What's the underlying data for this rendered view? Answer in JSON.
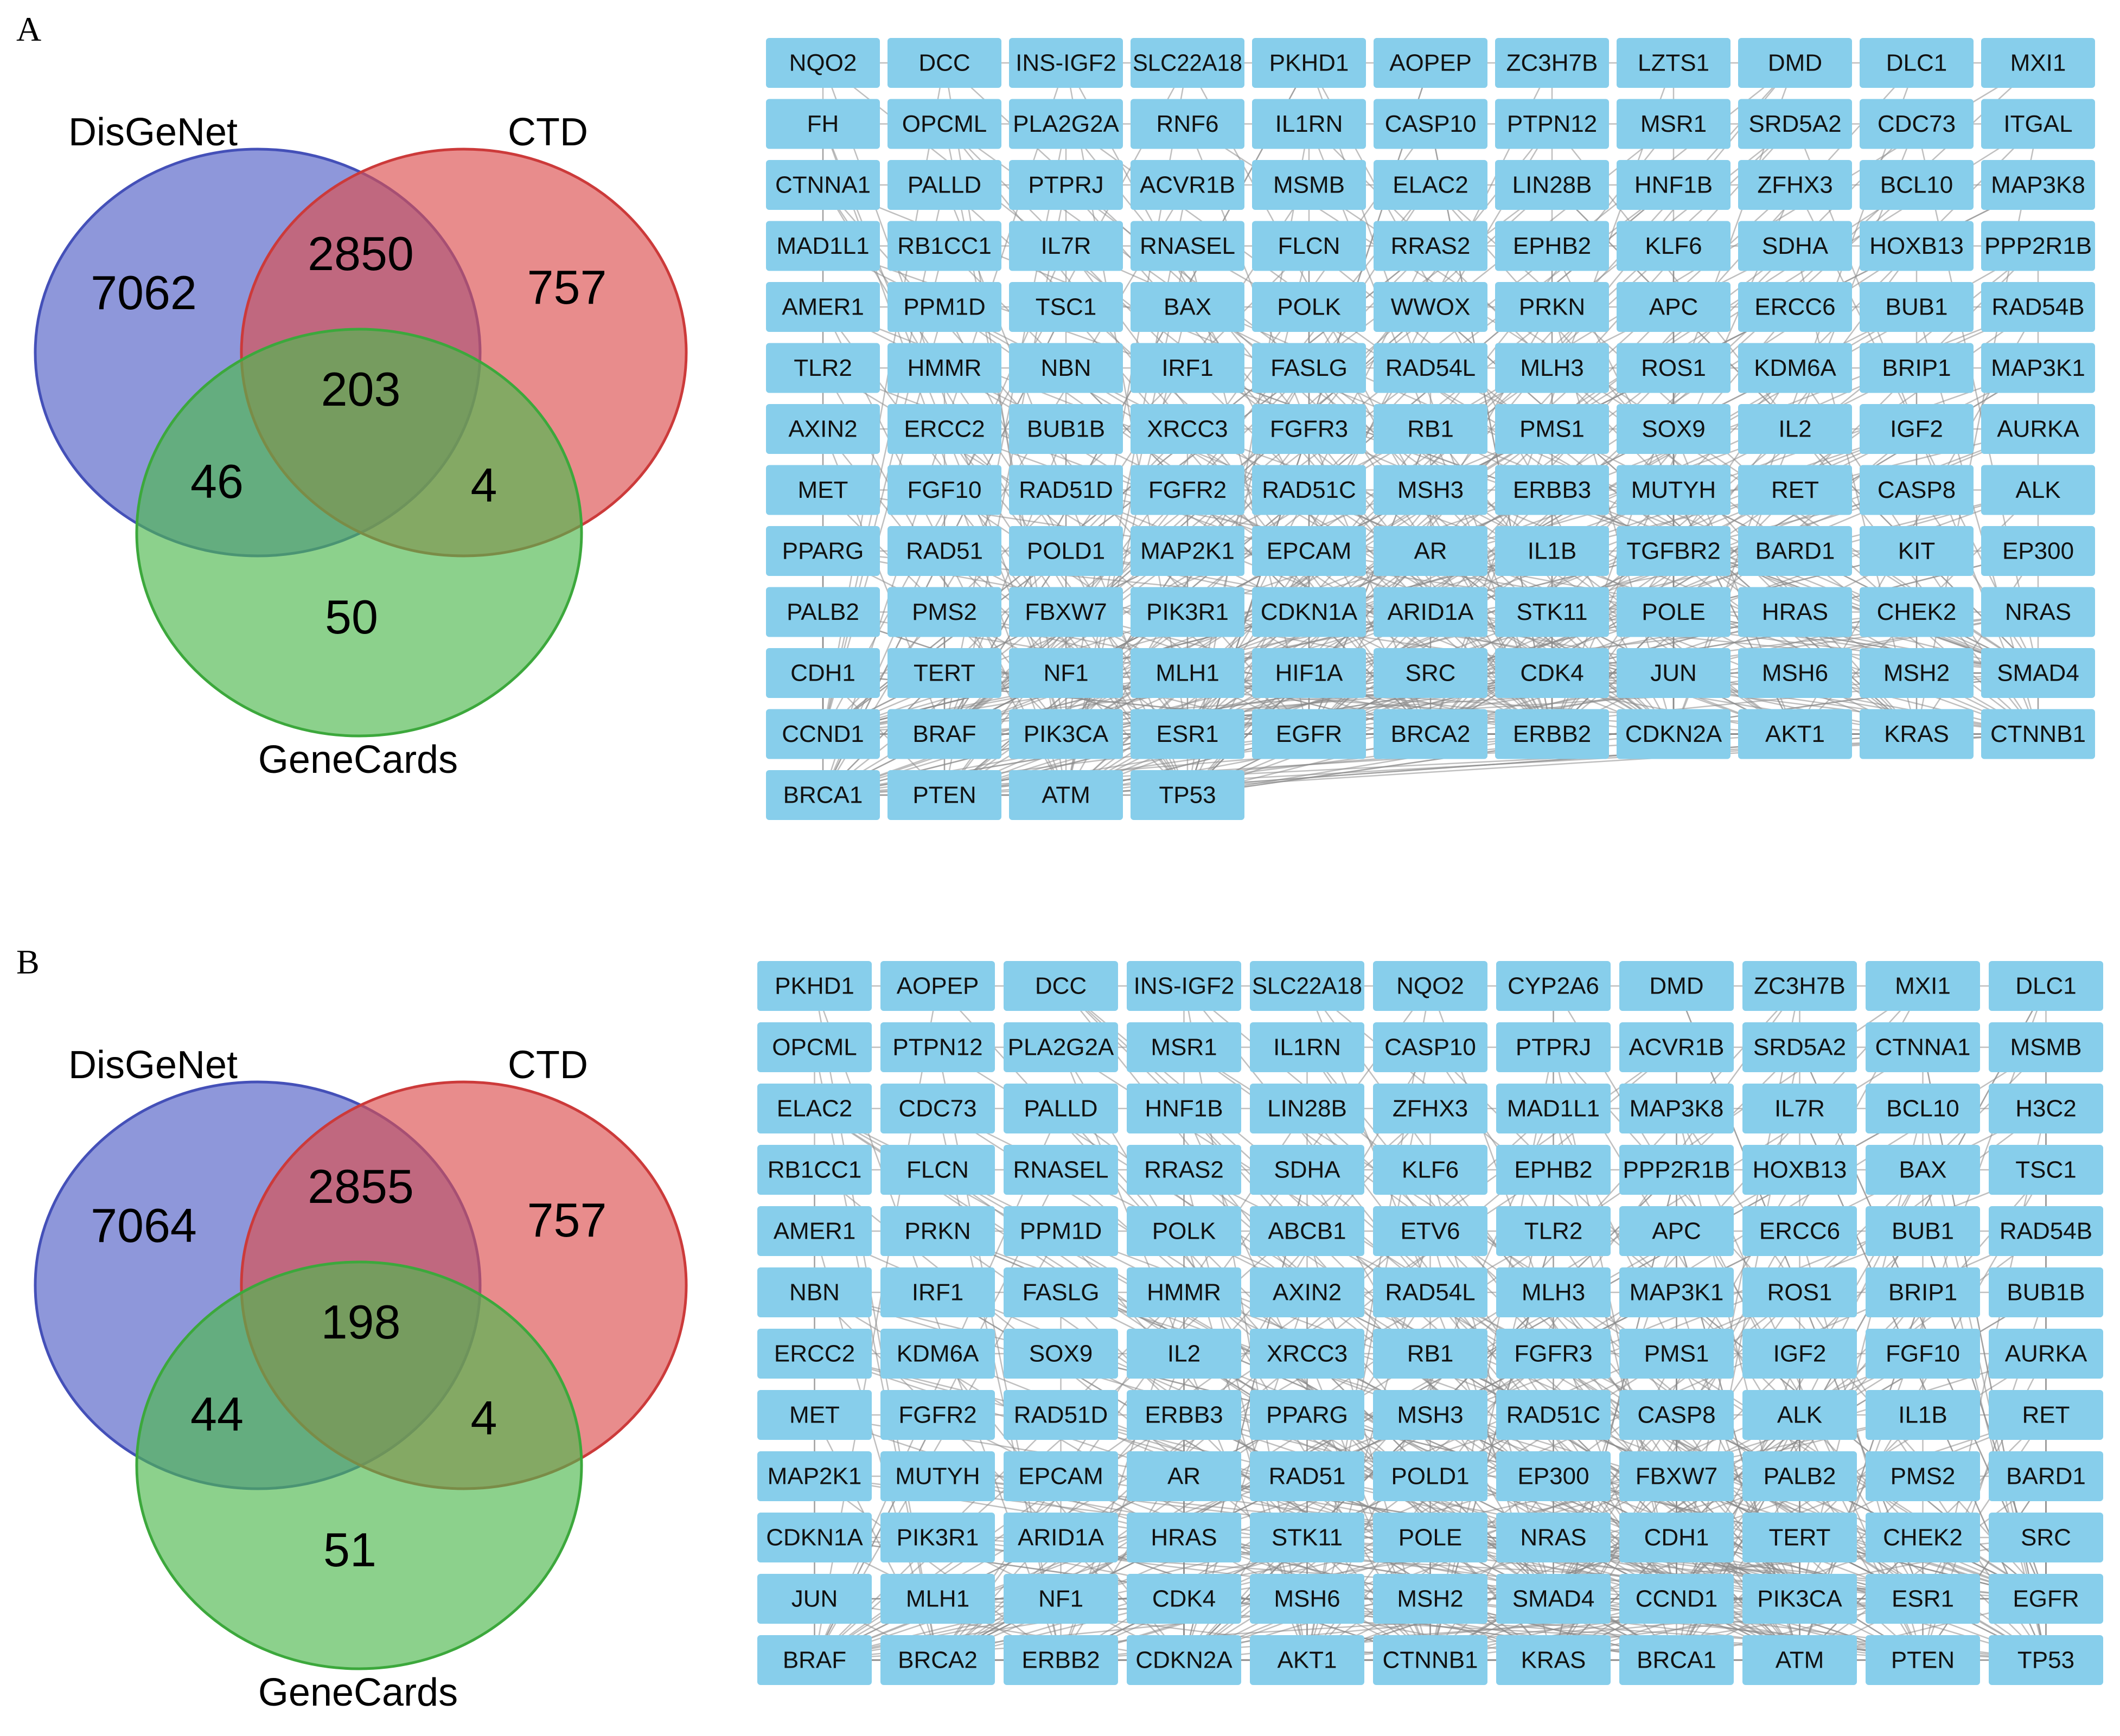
{
  "panels": [
    {
      "label": "A",
      "venn": {
        "sets": [
          "DisGeNet",
          "CTD",
          "GeneCards"
        ],
        "counts": {
          "disgenet_only": "7062",
          "ctd_only": "757",
          "genecards_only": "50",
          "disgenet_ctd": "2850",
          "disgenet_genecards": "46",
          "ctd_genecards": "4",
          "all_three": "203"
        }
      },
      "network": {
        "columns": 11,
        "nodes": [
          "NQO2",
          "DCC",
          "INS-IGF2",
          "SLC22A18",
          "PKHD1",
          "AOPEP",
          "ZC3H7B",
          "LZTS1",
          "DMD",
          "DLC1",
          "MXI1",
          "FH",
          "OPCML",
          "PLA2G2A",
          "RNF6",
          "IL1RN",
          "CASP10",
          "PTPN12",
          "MSR1",
          "SRD5A2",
          "CDC73",
          "ITGAL",
          "CTNNA1",
          "PALLD",
          "PTPRJ",
          "ACVR1B",
          "MSMB",
          "ELAC2",
          "LIN28B",
          "HNF1B",
          "ZFHX3",
          "BCL10",
          "MAP3K8",
          "MAD1L1",
          "RB1CC1",
          "IL7R",
          "RNASEL",
          "FLCN",
          "RRAS2",
          "EPHB2",
          "KLF6",
          "SDHA",
          "HOXB13",
          "PPP2R1B",
          "AMER1",
          "PPM1D",
          "TSC1",
          "BAX",
          "POLK",
          "WWOX",
          "PRKN",
          "APC",
          "ERCC6",
          "BUB1",
          "RAD54B",
          "TLR2",
          "HMMR",
          "NBN",
          "IRF1",
          "FASLG",
          "RAD54L",
          "MLH3",
          "ROS1",
          "KDM6A",
          "BRIP1",
          "MAP3K1",
          "AXIN2",
          "ERCC2",
          "BUB1B",
          "XRCC3",
          "FGFR3",
          "RB1",
          "PMS1",
          "SOX9",
          "IL2",
          "IGF2",
          "AURKA",
          "MET",
          "FGF10",
          "RAD51D",
          "FGFR2",
          "RAD51C",
          "MSH3",
          "ERBB3",
          "MUTYH",
          "RET",
          "CASP8",
          "ALK",
          "PPARG",
          "RAD51",
          "POLD1",
          "MAP2K1",
          "EPCAM",
          "AR",
          "IL1B",
          "TGFBR2",
          "BARD1",
          "KIT",
          "EP300",
          "PALB2",
          "PMS2",
          "FBXW7",
          "PIK3R1",
          "CDKN1A",
          "ARID1A",
          "STK11",
          "POLE",
          "HRAS",
          "CHEK2",
          "NRAS",
          "CDH1",
          "TERT",
          "NF1",
          "MLH1",
          "HIF1A",
          "SRC",
          "CDK4",
          "JUN",
          "MSH6",
          "MSH2",
          "SMAD4",
          "CCND1",
          "BRAF",
          "PIK3CA",
          "ESR1",
          "EGFR",
          "BRCA2",
          "ERBB2",
          "CDKN2A",
          "AKT1",
          "KRAS",
          "CTNNB1",
          "BRCA1",
          "PTEN",
          "ATM",
          "TP53"
        ]
      }
    },
    {
      "label": "B",
      "venn": {
        "sets": [
          "DisGeNet",
          "CTD",
          "GeneCards"
        ],
        "counts": {
          "disgenet_only": "7064",
          "ctd_only": "757",
          "genecards_only": "51",
          "disgenet_ctd": "2855",
          "disgenet_genecards": "44",
          "ctd_genecards": "4",
          "all_three": "198"
        }
      },
      "network": {
        "columns": 11,
        "nodes": [
          "PKHD1",
          "AOPEP",
          "DCC",
          "INS-IGF2",
          "SLC22A18",
          "NQO2",
          "CYP2A6",
          "DMD",
          "ZC3H7B",
          "MXI1",
          "DLC1",
          "OPCML",
          "PTPN12",
          "PLA2G2A",
          "MSR1",
          "IL1RN",
          "CASP10",
          "PTPRJ",
          "ACVR1B",
          "SRD5A2",
          "CTNNA1",
          "MSMB",
          "ELAC2",
          "CDC73",
          "PALLD",
          "HNF1B",
          "LIN28B",
          "ZFHX3",
          "MAD1L1",
          "MAP3K8",
          "IL7R",
          "BCL10",
          "H3C2",
          "RB1CC1",
          "FLCN",
          "RNASEL",
          "RRAS2",
          "SDHA",
          "KLF6",
          "EPHB2",
          "PPP2R1B",
          "HOXB13",
          "BAX",
          "TSC1",
          "AMER1",
          "PRKN",
          "PPM1D",
          "POLK",
          "ABCB1",
          "ETV6",
          "TLR2",
          "APC",
          "ERCC6",
          "BUB1",
          "RAD54B",
          "NBN",
          "IRF1",
          "FASLG",
          "HMMR",
          "AXIN2",
          "RAD54L",
          "MLH3",
          "MAP3K1",
          "ROS1",
          "BRIP1",
          "BUB1B",
          "ERCC2",
          "KDM6A",
          "SOX9",
          "IL2",
          "XRCC3",
          "RB1",
          "FGFR3",
          "PMS1",
          "IGF2",
          "FGF10",
          "AURKA",
          "MET",
          "FGFR2",
          "RAD51D",
          "ERBB3",
          "PPARG",
          "MSH3",
          "RAD51C",
          "CASP8",
          "ALK",
          "IL1B",
          "RET",
          "MAP2K1",
          "MUTYH",
          "EPCAM",
          "AR",
          "RAD51",
          "POLD1",
          "EP300",
          "FBXW7",
          "PALB2",
          "PMS2",
          "BARD1",
          "CDKN1A",
          "PIK3R1",
          "ARID1A",
          "HRAS",
          "STK11",
          "POLE",
          "NRAS",
          "CDH1",
          "TERT",
          "CHEK2",
          "SRC",
          "JUN",
          "MLH1",
          "NF1",
          "CDK4",
          "MSH6",
          "MSH2",
          "SMAD4",
          "CCND1",
          "PIK3CA",
          "ESR1",
          "EGFR",
          "BRAF",
          "BRCA2",
          "ERBB2",
          "CDKN2A",
          "AKT1",
          "CTNNB1",
          "KRAS",
          "BRCA1",
          "ATM",
          "PTEN",
          "TP53"
        ]
      }
    }
  ],
  "colors": {
    "disgenet": "#5865C8",
    "ctd": "#DC4F4F",
    "genecards": "#4FB84F",
    "node_fill": "#87CEEB",
    "edge": "#8A8A8A"
  }
}
